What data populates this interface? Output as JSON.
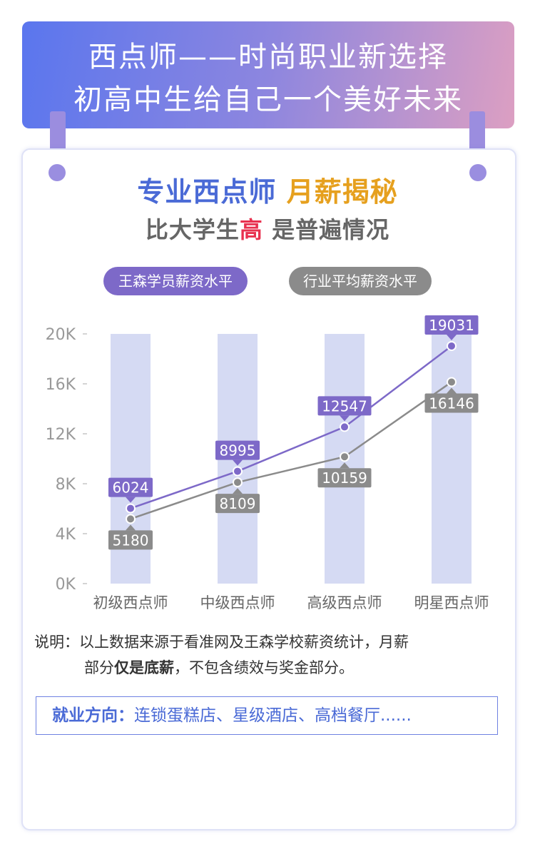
{
  "banner": {
    "line1": "西点师——时尚职业新选择",
    "line2": "初高中生给自己一个美好未来"
  },
  "heading": {
    "part1": "专业西点师",
    "part2": "月薪揭秘"
  },
  "subheading": {
    "before": "比大学生",
    "highlight": "高",
    "after": " 是普遍情况"
  },
  "legend": {
    "wangsen": "王森学员薪资水平",
    "industry": "行业平均薪资水平"
  },
  "chart_data": {
    "type": "line",
    "categories": [
      "初级西点师",
      "中级西点师",
      "高级西点师",
      "明星西点师"
    ],
    "series": [
      {
        "name": "王森学员薪资水平",
        "values": [
          6024,
          8995,
          12547,
          19031
        ],
        "color": "#7d69c8"
      },
      {
        "name": "行业平均薪资水平",
        "values": [
          5180,
          8109,
          10159,
          16146
        ],
        "color": "#8b8b8b"
      }
    ],
    "yticks": [
      "0K",
      "4K",
      "8K",
      "12K",
      "16K",
      "20K"
    ],
    "ylim": [
      0,
      20000
    ],
    "bar_color": "#d5daf3",
    "grid": false,
    "legend": "top"
  },
  "note": {
    "label": "说明：",
    "line1": "以上数据来源于看准网及王森学校薪资统计，月薪",
    "line2_a": "部分",
    "line2_b": "仅是底薪",
    "line2_c": "，不包含绩效与奖金部分。"
  },
  "career": {
    "label": "就业方向：",
    "value": "连锁蛋糕店、星级酒店、高档餐厅......"
  },
  "colors": {
    "accent": "#7d69c8",
    "gray": "#8b8b8b",
    "blue": "#4a6ad6",
    "orange": "#e6a01e",
    "red": "#e8314f"
  }
}
